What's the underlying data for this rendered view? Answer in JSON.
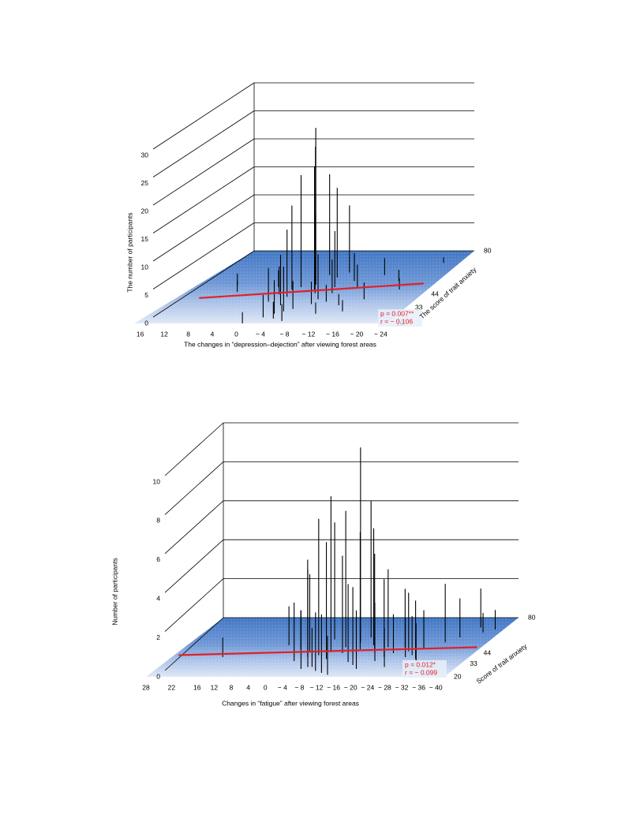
{
  "chart_data": [
    {
      "type": "spike3d",
      "y_label": "The number of participants",
      "x_label": "The changes in “depression–dejection” after viewing forest areas",
      "z_label": "The score of trait anxiety",
      "annotations": [
        "p = 0.007**",
        "r = − 0.106"
      ],
      "xlim": [
        17,
        -25
      ],
      "xticks": [
        16,
        12,
        8,
        4,
        0,
        {
          "value": -4,
          "label": "− 4"
        },
        {
          "value": -8,
          "label": "− 8"
        },
        {
          "value": -12,
          "label": "− 12"
        },
        {
          "value": -16,
          "label": "− 16"
        },
        {
          "value": -20,
          "label": "− 20"
        },
        {
          "value": -24,
          "label": "− 24"
        }
      ],
      "ylim": [
        0,
        30
      ],
      "yticks": [
        0,
        5,
        10,
        15,
        20,
        25,
        30
      ],
      "zlim": [
        20,
        80
      ],
      "zticks": [
        20,
        33,
        44,
        80
      ],
      "color": "#000000",
      "line_color": "#e0202a",
      "regression": {
        "x": [
          13,
          -23
        ],
        "z": [
          41,
          53
        ]
      },
      "x": [
        -2,
        -3,
        -4,
        -4,
        -5,
        -6,
        -6,
        -7,
        -8,
        -8,
        -2,
        -1,
        0,
        -3,
        -5,
        -9,
        -10,
        -12,
        -14,
        -16,
        -18,
        -20,
        -22,
        -4,
        -6,
        -8,
        -10,
        0,
        2,
        10,
        8,
        -13,
        -15,
        -3,
        -7,
        -11,
        -1,
        -5
      ],
      "z": [
        50,
        55,
        52,
        60,
        48,
        58,
        45,
        62,
        50,
        40,
        42,
        48,
        38,
        35,
        30,
        45,
        55,
        50,
        60,
        40,
        55,
        48,
        70,
        28,
        32,
        36,
        38,
        44,
        50,
        52,
        46,
        35,
        30,
        25,
        22,
        28,
        20,
        24
      ],
      "values": [
        20,
        24,
        28,
        18,
        22,
        16,
        14,
        12,
        10,
        8,
        12,
        15,
        6,
        9,
        8,
        6,
        5,
        4,
        3,
        3,
        2,
        2,
        1,
        6,
        5,
        4,
        3,
        5,
        3,
        2,
        2,
        2,
        2,
        4,
        3,
        2,
        2,
        3
      ]
    },
    {
      "type": "spike3d",
      "y_label": "Number of participants",
      "x_label": "Changes in “fatigue” after viewing forest areas",
      "z_label": "Score of trait anxiety",
      "annotations": [
        "p = 0.012*",
        "r = − 0.099"
      ],
      "xlim": [
        28,
        -42
      ],
      "xticks": [
        28,
        22,
        16,
        12,
        8,
        4,
        0,
        {
          "value": -4,
          "label": "− 4"
        },
        {
          "value": -8,
          "label": "− 8"
        },
        {
          "value": -12,
          "label": "− 12"
        },
        {
          "value": -16,
          "label": "− 16"
        },
        {
          "value": -20,
          "label": "− 20"
        },
        {
          "value": -24,
          "label": "− 24"
        },
        {
          "value": -28,
          "label": "− 28"
        },
        {
          "value": -32,
          "label": "− 32"
        },
        {
          "value": -36,
          "label": "− 36"
        },
        {
          "value": -40,
          "label": "− 40"
        }
      ],
      "ylim": [
        0,
        10
      ],
      "yticks": [
        0,
        2,
        4,
        6,
        8,
        10
      ],
      "zlim": [
        20,
        80
      ],
      "zticks": [
        20,
        33,
        44,
        80
      ],
      "color": "#000000",
      "line_color": "#e0202a",
      "regression": {
        "x": [
          27,
          -41
        ],
        "z": [
          42,
          50
        ]
      },
      "x": [
        -8,
        -10,
        -12,
        -14,
        -6,
        -4,
        -16,
        -18,
        -20,
        -9,
        -11,
        -13,
        -15,
        -7,
        -5,
        -3,
        -2,
        0,
        -22,
        -24,
        -26,
        -28,
        -30,
        -32,
        -34,
        -36,
        -38,
        -17,
        -19,
        -21,
        -23,
        -25,
        -27,
        -10,
        -12,
        -14,
        -6,
        -8,
        16,
        4,
        -40,
        -31,
        -29
      ],
      "z": [
        45,
        50,
        55,
        48,
        42,
        40,
        52,
        46,
        50,
        38,
        44,
        60,
        35,
        30,
        58,
        45,
        36,
        48,
        40,
        50,
        46,
        42,
        38,
        55,
        60,
        70,
        65,
        32,
        28,
        36,
        44,
        30,
        40,
        26,
        24,
        22,
        28,
        30,
        40,
        52,
        68,
        35,
        48
      ],
      "values": [
        8,
        7,
        10,
        6,
        7,
        5,
        6,
        5,
        4,
        6,
        5,
        7,
        4,
        5,
        6,
        4,
        3,
        2,
        4,
        3,
        3,
        2,
        3,
        3,
        2,
        2,
        1,
        4,
        3,
        3,
        2,
        2,
        2,
        3,
        3,
        2,
        3,
        2,
        1,
        2,
        1,
        2,
        2
      ]
    }
  ]
}
